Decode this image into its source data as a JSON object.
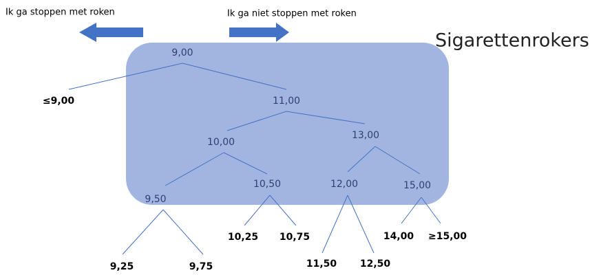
{
  "header": {
    "left_arrow_label": "Ik ga stoppen met roken",
    "right_arrow_label": "Ik ga niet stoppen met roken",
    "title": "Sigarettenrokers"
  },
  "nodes": [
    "9,00",
    "11,00",
    "10,00",
    "13,00",
    "9,50",
    "10,50",
    "12,00",
    "15,00"
  ],
  "leaves": [
    "≤9,00",
    "10,25",
    "10,75",
    "14,00",
    "≥15,00",
    "9,25",
    "9,75",
    "11,50",
    "12,50"
  ]
}
